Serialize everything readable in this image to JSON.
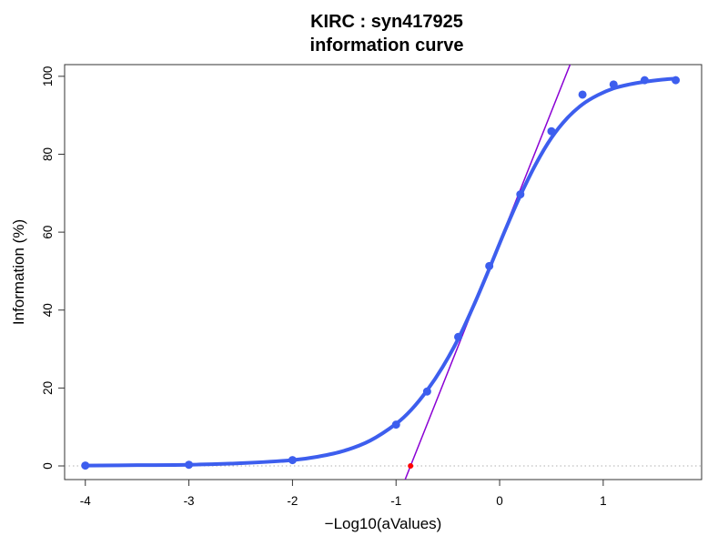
{
  "chart_data": {
    "type": "line",
    "title": "KIRC : syn417925",
    "subtitle": "information curve",
    "xlabel": "−Log10(aValues)",
    "ylabel": "Information (%)",
    "xlim": [
      -4.2,
      1.95
    ],
    "ylim": [
      -3.5,
      103
    ],
    "xticks": [
      -4,
      -3,
      -2,
      -1,
      0,
      1
    ],
    "xtick_labels": [
      "-4",
      "-3",
      "-2",
      "-1",
      "0",
      "1"
    ],
    "yticks": [
      0,
      20,
      40,
      60,
      80,
      100
    ],
    "ytick_labels": [
      "0",
      "20",
      "40",
      "60",
      "80",
      "100"
    ],
    "grid": false,
    "series": [
      {
        "kind": "points",
        "color": "#3d5eee",
        "x": [
          -4,
          -3,
          -2,
          -1,
          -0.7,
          -0.4,
          -0.1,
          0.2,
          0.5,
          0.8,
          1.1,
          1.4,
          1.7
        ],
        "y": [
          0.1,
          0.3,
          1.5,
          10.6,
          19.1,
          33.1,
          51.3,
          69.7,
          85.9,
          95.3,
          97.9,
          99.0,
          99.0
        ]
      },
      {
        "kind": "fitted-curve",
        "color": "#3d5eee",
        "x": [
          -4,
          -3.5,
          -3,
          -2.5,
          -2,
          -1.75,
          -1.5,
          -1.25,
          -1,
          -0.85,
          -0.7,
          -0.55,
          -0.4,
          -0.25,
          -0.1,
          0.05,
          0.2,
          0.35,
          0.5,
          0.65,
          0.8,
          0.95,
          1.1,
          1.25,
          1.4,
          1.55,
          1.7
        ],
        "y": [
          0.1,
          0.2,
          0.3,
          0.7,
          1.5,
          2.4,
          3.9,
          6.5,
          10.8,
          14.5,
          19.4,
          25.4,
          32.6,
          41.2,
          50.6,
          60.3,
          69.4,
          77.5,
          84.2,
          89.2,
          92.8,
          95.2,
          96.9,
          97.9,
          98.6,
          99.1,
          99.4
        ]
      },
      {
        "kind": "tangent-line",
        "color": "#8a00d4",
        "x": [
          -0.92,
          0.68
        ],
        "y": [
          -4,
          103
        ]
      },
      {
        "kind": "baseline",
        "style": "dotted",
        "color": "#b0b0b0",
        "y": 0
      },
      {
        "kind": "marker",
        "color": "#ff0000",
        "x": [
          -0.86
        ],
        "y": [
          0
        ]
      }
    ]
  }
}
